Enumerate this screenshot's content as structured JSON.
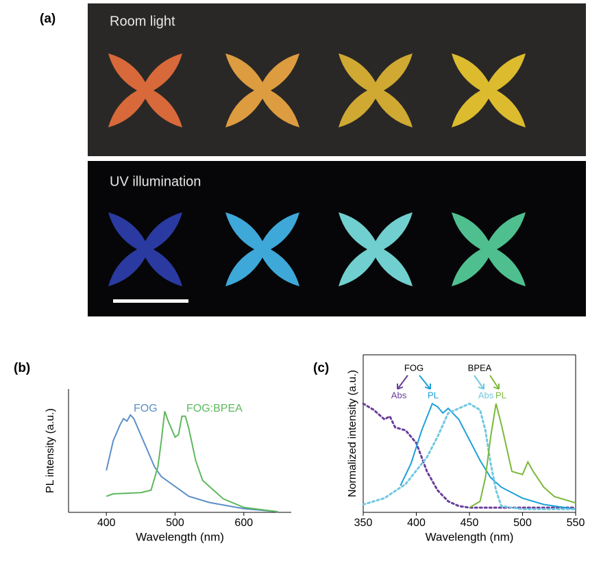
{
  "figure": {
    "panel_a": "(a)",
    "panel_b": "(b)",
    "panel_c": "(c)",
    "room_light": "Room light",
    "uv_illumination": "UV illumination"
  },
  "chart_data": [
    {
      "type": "line",
      "xlabel": "Wavelength (nm)",
      "ylabel": "PL intensity (a.u.)",
      "xlim": [
        345,
        669
      ],
      "xticks": [
        400,
        500,
        600
      ],
      "ylim": [
        0,
        1
      ],
      "frame": false,
      "series": [
        {
          "name": "FOG",
          "color": "#5b8fc8",
          "style": "solid",
          "x": [
            400,
            410,
            420,
            425,
            430,
            435,
            440,
            450,
            460,
            470,
            480,
            500,
            520,
            550,
            600,
            650
          ],
          "values": [
            0.34,
            0.58,
            0.71,
            0.76,
            0.74,
            0.79,
            0.76,
            0.63,
            0.5,
            0.37,
            0.29,
            0.21,
            0.13,
            0.08,
            0.03,
            0.005
          ]
        },
        {
          "name": "FOG:BPEA",
          "color": "#5cb85c",
          "style": "solid",
          "x": [
            400,
            410,
            450,
            465,
            475,
            480,
            485,
            490,
            500,
            505,
            510,
            515,
            520,
            530,
            540,
            550,
            570,
            600,
            650
          ],
          "values": [
            0.13,
            0.15,
            0.16,
            0.18,
            0.37,
            0.58,
            0.82,
            0.74,
            0.61,
            0.63,
            0.78,
            0.78,
            0.68,
            0.42,
            0.26,
            0.21,
            0.11,
            0.04,
            0.005
          ]
        }
      ]
    },
    {
      "type": "line",
      "xlabel": "Wavelength (nm)",
      "ylabel": "Normalized intensity (a.u.)",
      "xlim": [
        350,
        550
      ],
      "xticks": [
        350,
        400,
        450,
        500,
        550
      ],
      "ylim": [
        0,
        1
      ],
      "frame": true,
      "annotations": [
        "FOG",
        "BPEA"
      ],
      "series": [
        {
          "name": "Abs",
          "color": "#6a3d9a",
          "style": "dotted",
          "x": [
            350,
            360,
            370,
            375,
            380,
            390,
            400,
            410,
            420,
            430,
            440,
            450,
            500,
            550
          ],
          "values": [
            0.69,
            0.65,
            0.59,
            0.61,
            0.54,
            0.52,
            0.44,
            0.26,
            0.14,
            0.07,
            0.04,
            0.03,
            0.03,
            0.03
          ]
        },
        {
          "name": "PL",
          "color": "#1aa0d8",
          "style": "solid",
          "x": [
            385,
            395,
            405,
            415,
            420,
            425,
            430,
            440,
            450,
            460,
            470,
            480,
            500,
            520,
            550
          ],
          "values": [
            0.17,
            0.31,
            0.52,
            0.69,
            0.67,
            0.63,
            0.66,
            0.59,
            0.46,
            0.33,
            0.22,
            0.16,
            0.09,
            0.05,
            0.02
          ]
        },
        {
          "name": "Abs",
          "color": "#70c8e0",
          "style": "dotted",
          "x": [
            350,
            370,
            390,
            410,
            420,
            430,
            440,
            450,
            460,
            465,
            470,
            475,
            480,
            500,
            550
          ],
          "values": [
            0.05,
            0.09,
            0.18,
            0.35,
            0.48,
            0.63,
            0.66,
            0.69,
            0.65,
            0.52,
            0.31,
            0.14,
            0.04,
            0.02,
            0.02
          ]
        },
        {
          "name": "PL",
          "color": "#7ab83a",
          "style": "solid",
          "x": [
            450,
            460,
            465,
            470,
            475,
            480,
            490,
            500,
            505,
            510,
            520,
            530,
            550
          ],
          "values": [
            0.03,
            0.07,
            0.22,
            0.48,
            0.69,
            0.56,
            0.26,
            0.24,
            0.32,
            0.26,
            0.16,
            0.1,
            0.06
          ]
        }
      ]
    }
  ]
}
